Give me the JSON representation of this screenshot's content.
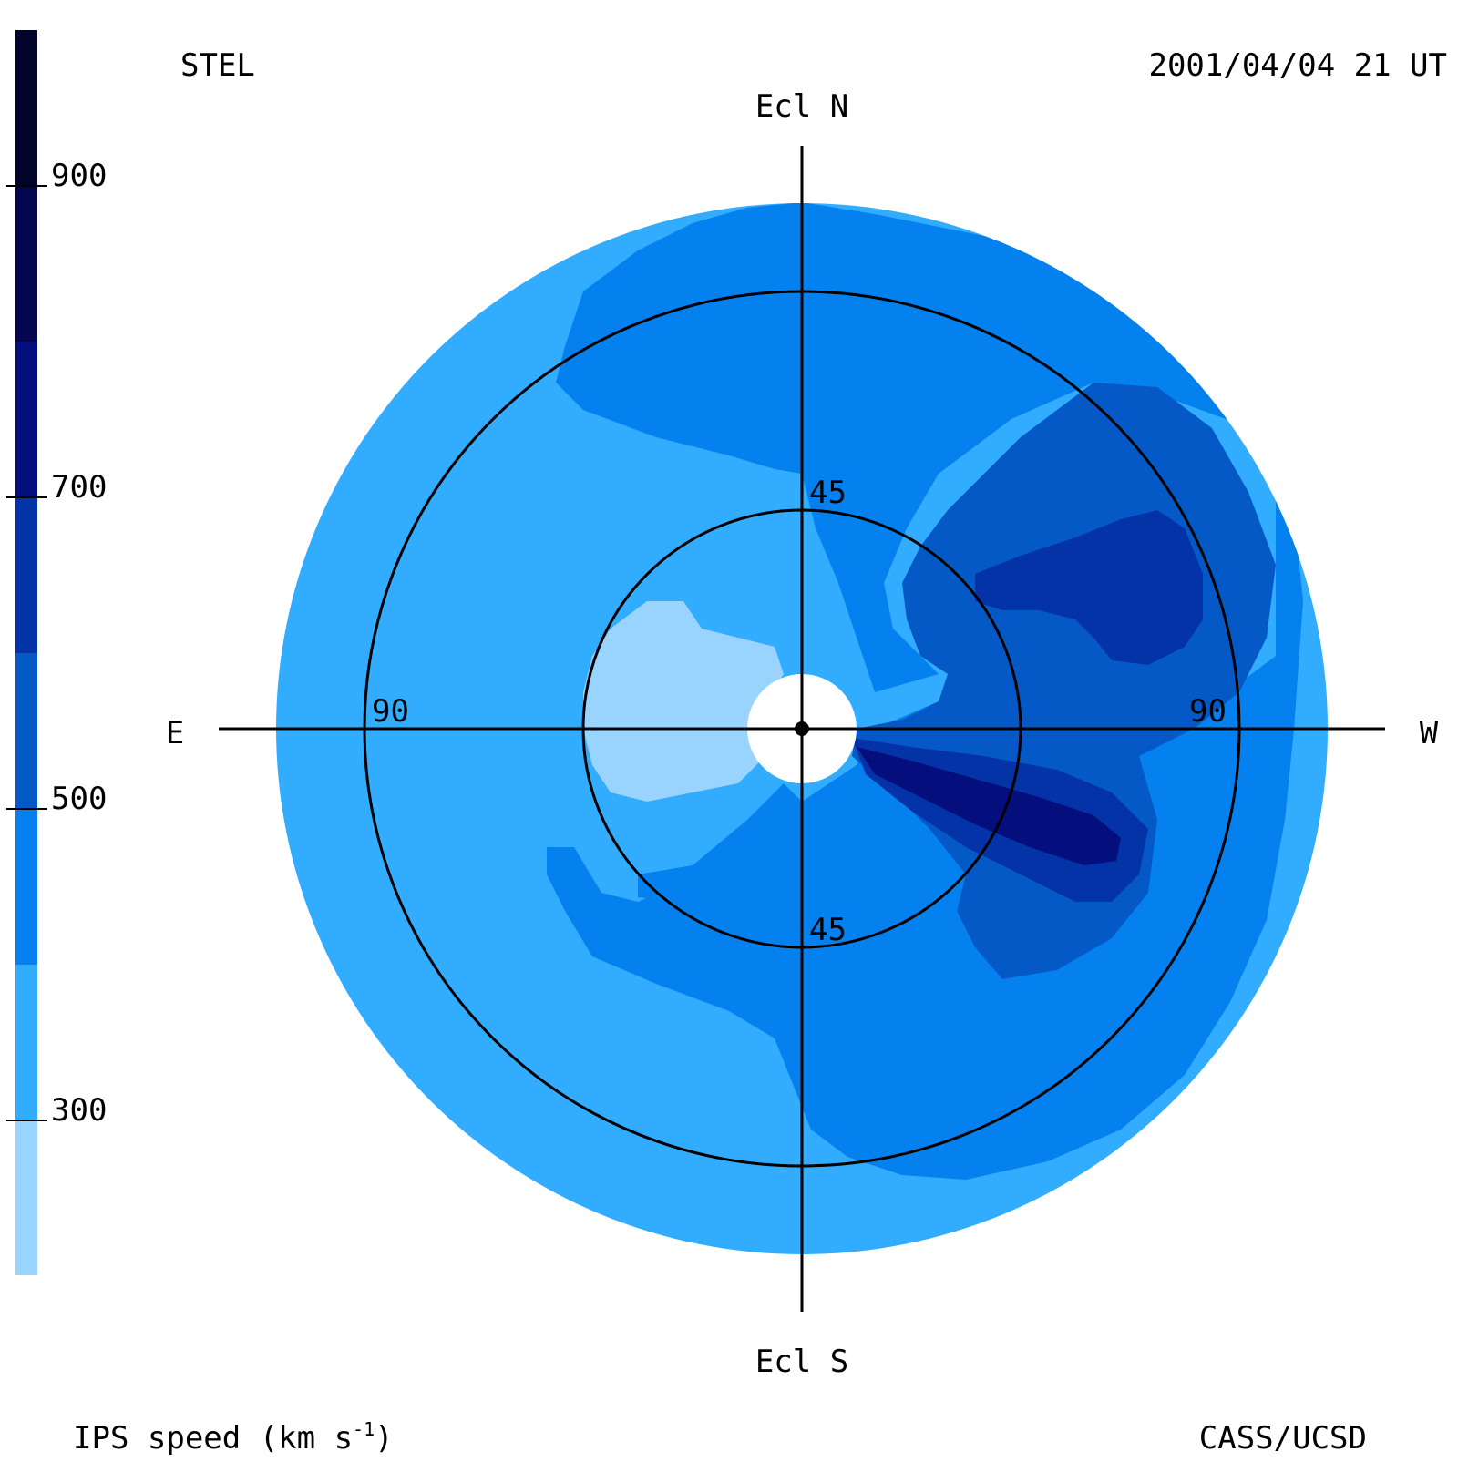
{
  "source_label": "STEL",
  "timestamp": "2001/04/04 21 UT",
  "credit": "CASS/UCSD",
  "colorbar": {
    "title": "IPS speed (km s",
    "title_sup": "-1",
    "title_end": ")",
    "tick_labels": [
      "900",
      "700",
      "500",
      "300"
    ],
    "bands": [
      {
        "min": 200,
        "max": 300,
        "color": "#99d4ff"
      },
      {
        "min": 300,
        "max": 400,
        "color": "#31acff"
      },
      {
        "min": 400,
        "max": 500,
        "color": "#0481ef"
      },
      {
        "min": 500,
        "max": 600,
        "color": "#0459c7"
      },
      {
        "min": 600,
        "max": 700,
        "color": "#0433a7"
      },
      {
        "min": 700,
        "max": 800,
        "color": "#040e7d"
      },
      {
        "min": 800,
        "max": 900,
        "color": "#040650"
      },
      {
        "min": 900,
        "max": 1000,
        "color": "#02032a"
      }
    ]
  },
  "sky_map": {
    "directions": {
      "north": "Ecl N",
      "south": "Ecl S",
      "east": "E",
      "west": "W"
    },
    "elongation_labels": {
      "inner_top": "45",
      "inner_bottom": "45",
      "outer_east": "90",
      "outer_west": "90"
    },
    "sun_marker": "sun-dot"
  }
}
